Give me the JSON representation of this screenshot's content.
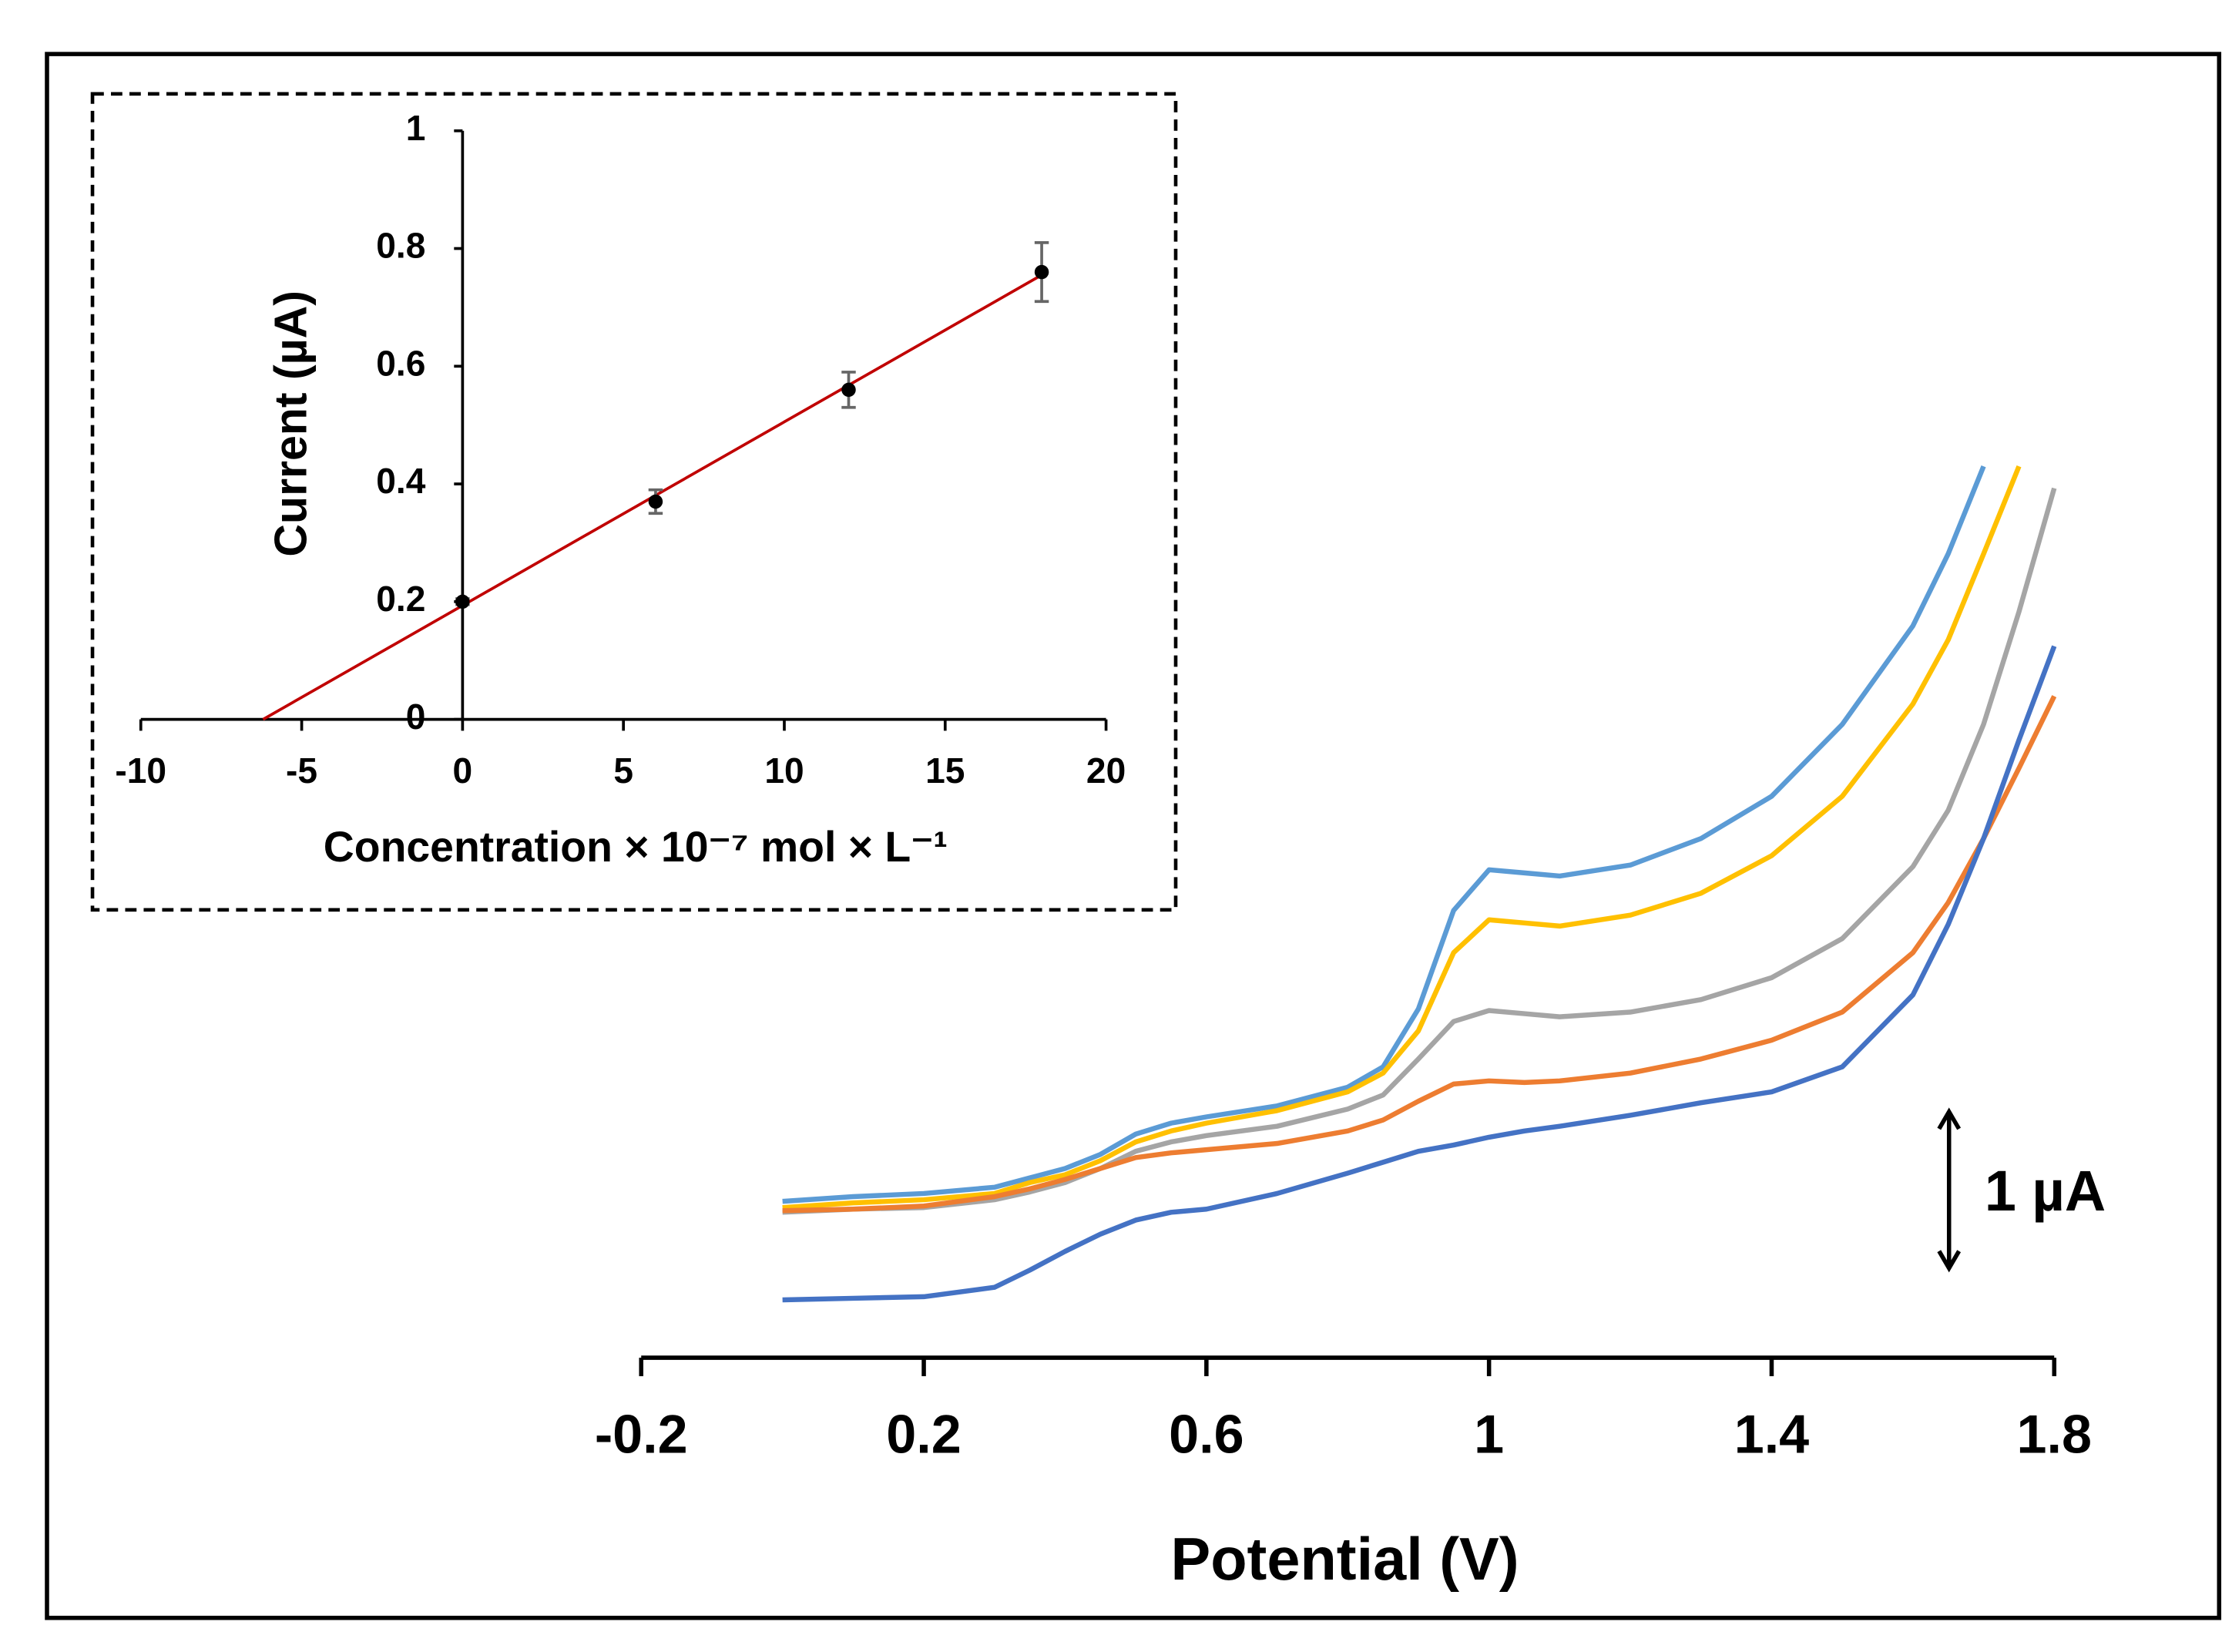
{
  "chart_data": [
    {
      "type": "line",
      "x_label": "Potential (V)",
      "x": [
        0,
        0.1,
        0.2,
        0.3,
        0.35,
        0.4,
        0.45,
        0.5,
        0.55,
        0.6,
        0.7,
        0.8,
        0.85,
        0.9,
        0.95,
        1.0,
        1.05,
        1.1,
        1.2,
        1.3,
        1.4,
        1.5,
        1.6,
        1.65,
        1.7,
        1.75,
        1.8
      ],
      "xlim": [
        -0.2,
        1.8
      ],
      "xticks": [
        -0.2,
        0.2,
        0.6,
        1,
        1.4,
        1.8
      ],
      "ylim": [
        0,
        8
      ],
      "scale_bar": {
        "label": "1 µA",
        "value": 1
      },
      "series": [
        {
          "color": "#5b9bd5",
          "values": [
            1.0,
            1.03,
            1.05,
            1.09,
            1.15,
            1.21,
            1.3,
            1.43,
            1.5,
            1.54,
            1.61,
            1.73,
            1.86,
            2.23,
            2.86,
            3.12,
            3.1,
            3.08,
            3.15,
            3.32,
            3.59,
            4.05,
            4.68,
            5.14,
            5.7,
            null,
            null
          ]
        },
        {
          "color": "#ffc000",
          "values": [
            0.96,
            0.99,
            1.01,
            1.05,
            1.12,
            1.17,
            1.26,
            1.38,
            1.45,
            1.5,
            1.58,
            1.7,
            1.82,
            2.09,
            2.59,
            2.8,
            2.78,
            2.76,
            2.83,
            2.97,
            3.21,
            3.59,
            4.18,
            4.59,
            5.14,
            5.7,
            null
          ]
        },
        {
          "color": "#a5a5a5",
          "values": [
            0.93,
            0.95,
            0.96,
            1.01,
            1.06,
            1.12,
            1.21,
            1.32,
            1.38,
            1.42,
            1.48,
            1.59,
            1.68,
            1.91,
            2.15,
            2.22,
            2.2,
            2.18,
            2.21,
            2.29,
            2.43,
            2.68,
            3.14,
            3.5,
            4.05,
            4.77,
            5.56
          ]
        },
        {
          "color": "#ed7d31",
          "values": [
            0.94,
            0.95,
            0.97,
            1.03,
            1.08,
            1.14,
            1.21,
            1.28,
            1.31,
            1.33,
            1.37,
            1.45,
            1.52,
            1.64,
            1.75,
            1.77,
            1.76,
            1.77,
            1.82,
            1.91,
            2.03,
            2.21,
            2.59,
            2.91,
            3.32,
            3.77,
            4.23
          ]
        },
        {
          "color": "#4472c4",
          "values": [
            0.37,
            0.38,
            0.39,
            0.45,
            0.56,
            0.68,
            0.79,
            0.88,
            0.93,
            0.95,
            1.05,
            1.18,
            1.25,
            1.32,
            1.36,
            1.41,
            1.45,
            1.48,
            1.55,
            1.63,
            1.7,
            1.86,
            2.32,
            2.77,
            3.32,
            3.95,
            4.55
          ]
        }
      ]
    },
    {
      "type": "scatter",
      "x_label": "Concentration × 10⁻⁷ mol × L⁻¹",
      "y_label": "Current (µA)",
      "x": [
        0,
        6,
        12,
        18
      ],
      "values": [
        0.2,
        0.37,
        0.56,
        0.76
      ],
      "errors": [
        0.005,
        0.02,
        0.03,
        0.05
      ],
      "color": "#000000",
      "fit_line": {
        "x": [
          -6.2,
          18
        ],
        "values": [
          0,
          0.755
        ],
        "color": "#c00000"
      },
      "xlim": [
        -10,
        20
      ],
      "xticks": [
        -10,
        -5,
        0,
        5,
        10,
        15,
        20
      ],
      "ylim": [
        0,
        1
      ],
      "yticks": [
        0,
        0.2,
        0.4,
        0.6,
        0.8,
        1
      ]
    }
  ]
}
